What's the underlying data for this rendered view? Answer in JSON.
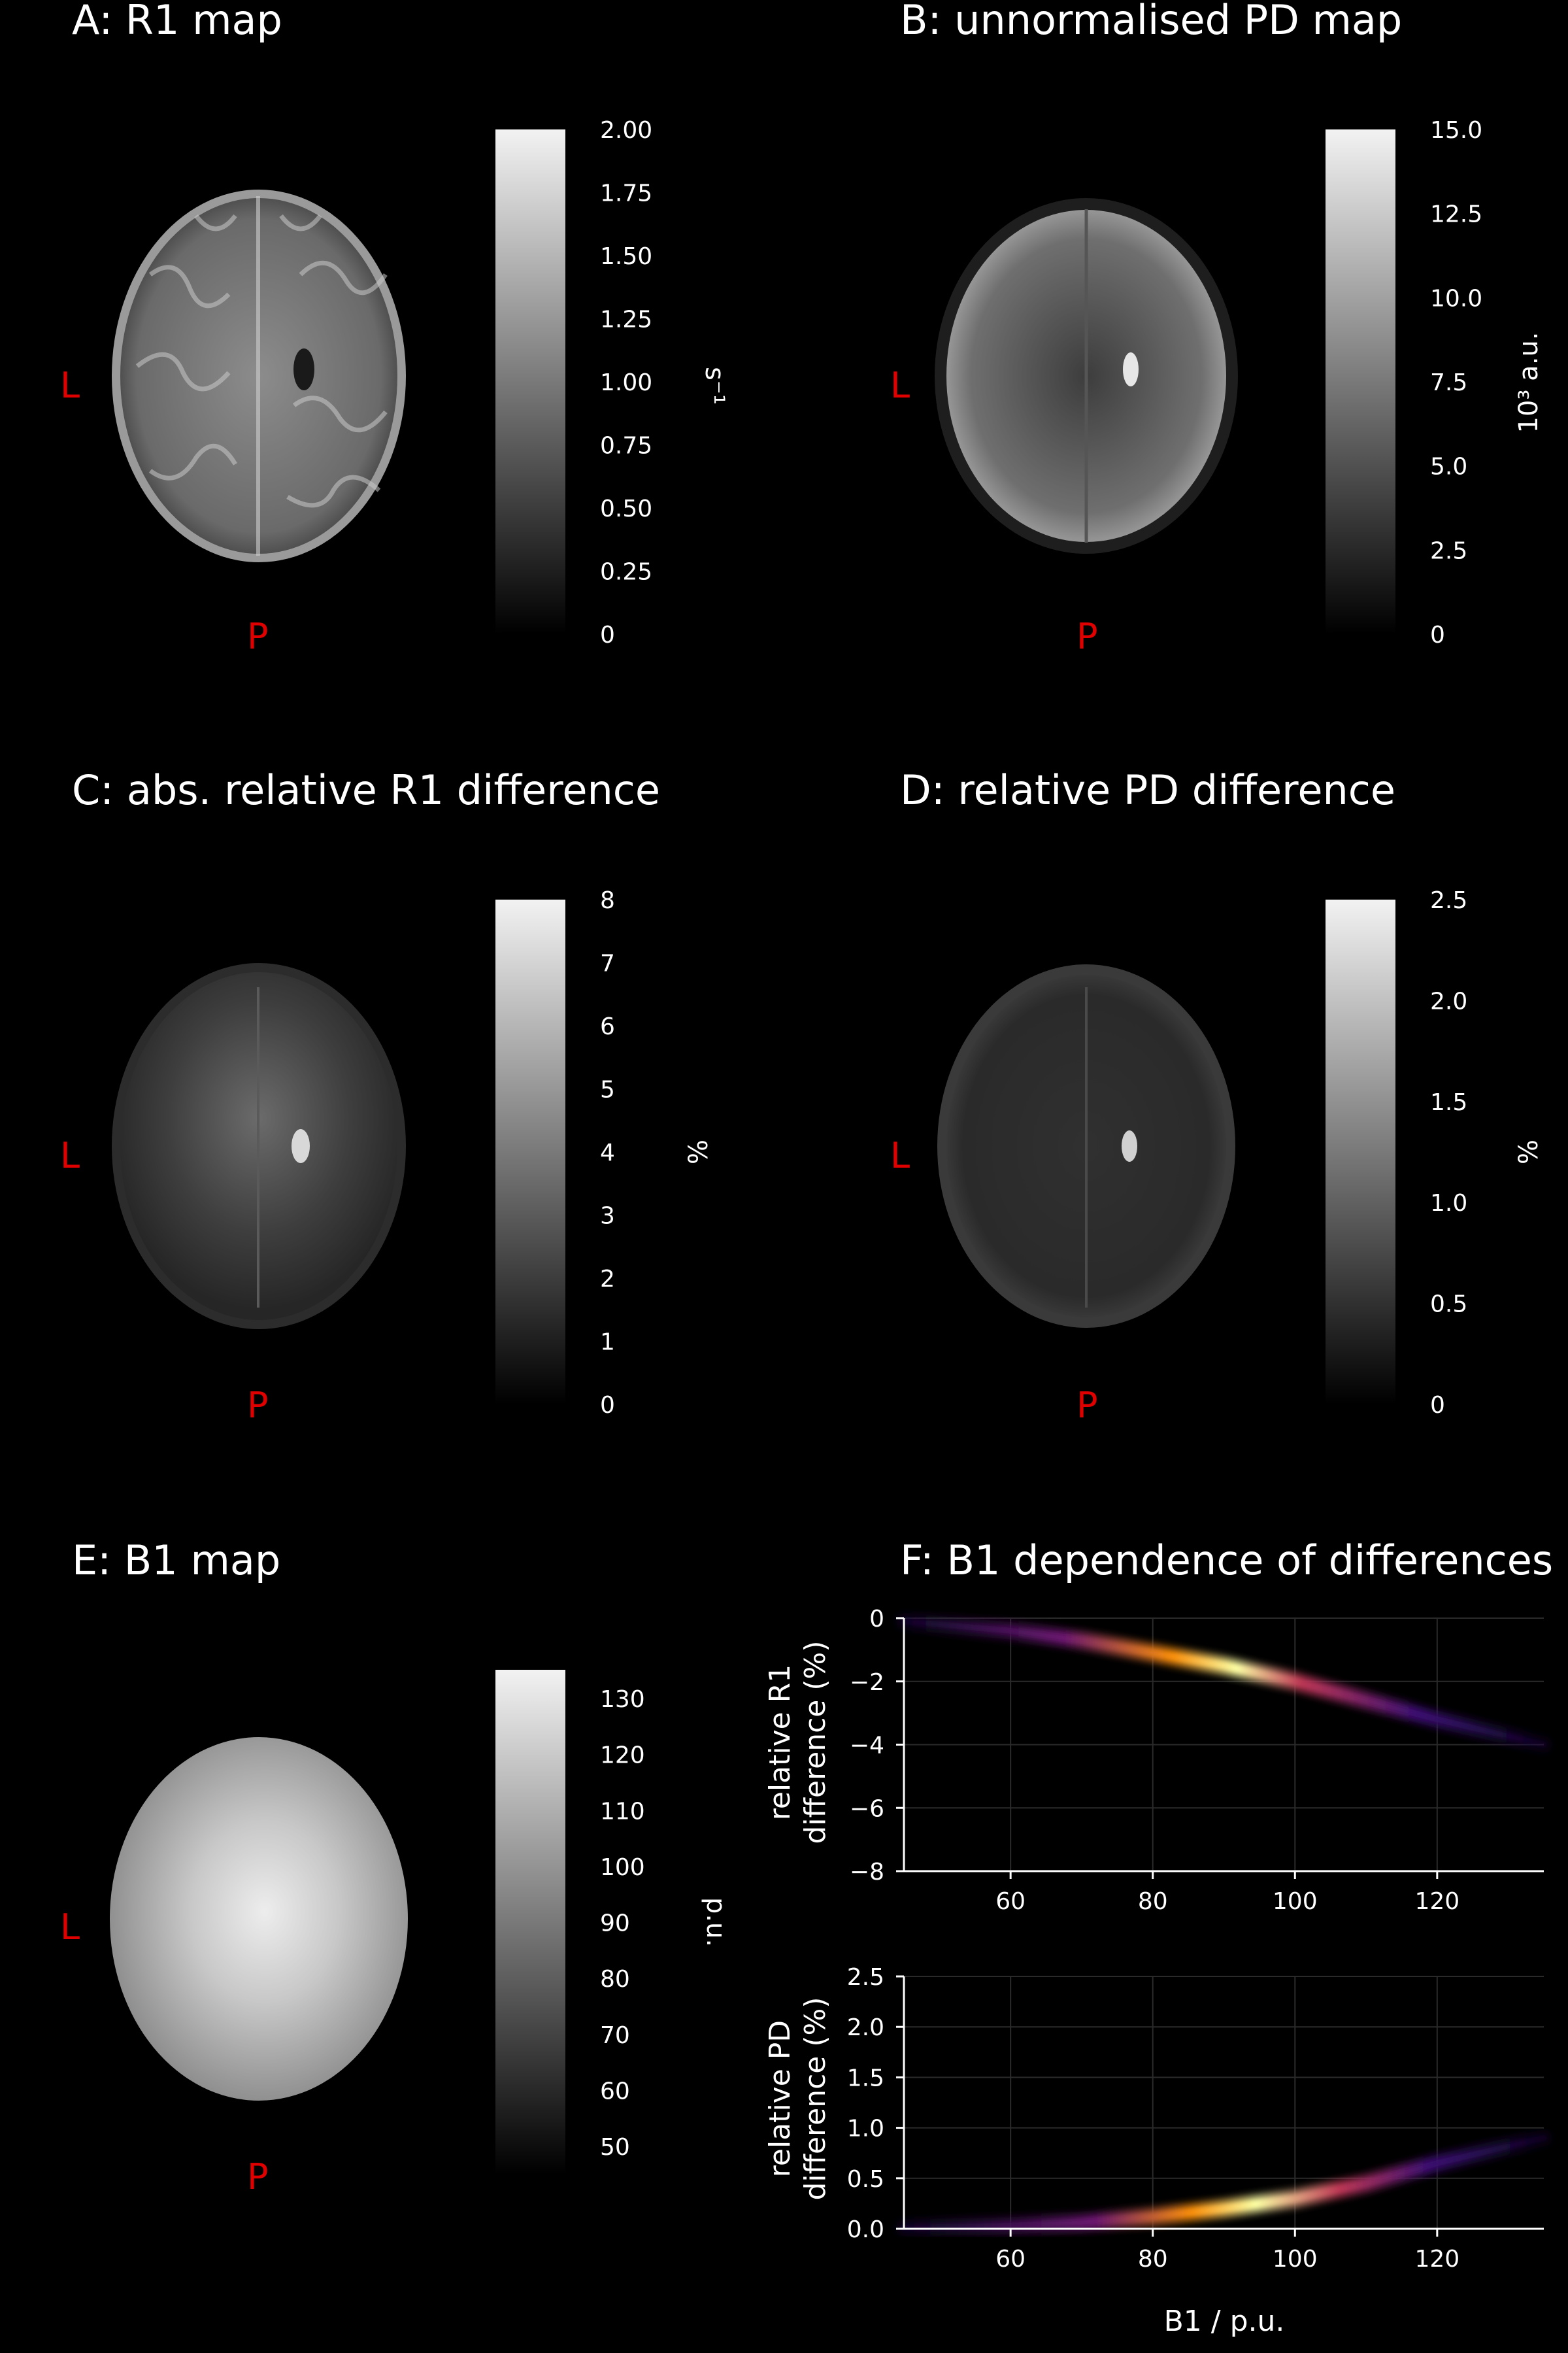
{
  "panels": [
    {
      "id": "A",
      "title": "A: R1 map",
      "unit": "s⁻¹",
      "ticks": [
        "2.00",
        "1.75",
        "1.50",
        "1.25",
        "1.00",
        "0.75",
        "0.50",
        "0.25",
        "0"
      ]
    },
    {
      "id": "B",
      "title": "B: unnormalised PD map",
      "unit": "10³ a.u.",
      "ticks": [
        "15.0",
        "12.5",
        "10.0",
        "7.5",
        "5.0",
        "2.5",
        "0"
      ]
    },
    {
      "id": "C",
      "title": "C: abs. relative R1 difference",
      "unit": "%",
      "ticks": [
        "8",
        "7",
        "6",
        "5",
        "4",
        "3",
        "2",
        "1",
        "0"
      ]
    },
    {
      "id": "D",
      "title": "D: relative PD difference",
      "unit": "%",
      "ticks": [
        "2.5",
        "2.0",
        "1.5",
        "1.0",
        "0.5",
        "0"
      ]
    },
    {
      "id": "E",
      "title": "E: B1 map",
      "unit": "p.u.",
      "ticks": [
        "130",
        "120",
        "110",
        "100",
        "90",
        "80",
        "70",
        "60",
        "50"
      ]
    }
  ],
  "orientation": {
    "left": "L",
    "posterior": "P"
  },
  "panel_f": {
    "title": "F: B1 dependence of differences",
    "xlabel": "B1 / p.u.",
    "colormap": "inferno"
  },
  "chart_data": [
    {
      "type": "heatmap",
      "ylabel_line1": "relative R1",
      "ylabel_line2": "difference (%)",
      "xlim": [
        45,
        135
      ],
      "ylim": [
        -8,
        0
      ],
      "xticks": [
        60,
        80,
        100,
        120
      ],
      "yticks": [
        0,
        -2,
        -4,
        -6,
        -8
      ],
      "grid": true,
      "density_ridge": {
        "x": [
          45,
          60,
          70,
          80,
          90,
          100,
          110,
          120,
          135
        ],
        "y": [
          -0.1,
          -0.4,
          -0.7,
          -1.1,
          -1.5,
          -2.0,
          -2.6,
          -3.2,
          -4.0
        ]
      }
    },
    {
      "type": "heatmap",
      "ylabel_line1": "relative PD",
      "ylabel_line2": "difference (%)",
      "xlabel": "B1 / p.u.",
      "xlim": [
        45,
        135
      ],
      "ylim": [
        0,
        2.5
      ],
      "xticks": [
        60,
        80,
        100,
        120
      ],
      "yticks": [
        0.0,
        0.5,
        1.0,
        1.5,
        2.0,
        2.5
      ],
      "grid": true,
      "density_ridge": {
        "x": [
          45,
          60,
          70,
          80,
          90,
          100,
          110,
          120,
          135
        ],
        "y": [
          0.01,
          0.03,
          0.06,
          0.12,
          0.2,
          0.3,
          0.45,
          0.65,
          0.9
        ]
      }
    }
  ]
}
